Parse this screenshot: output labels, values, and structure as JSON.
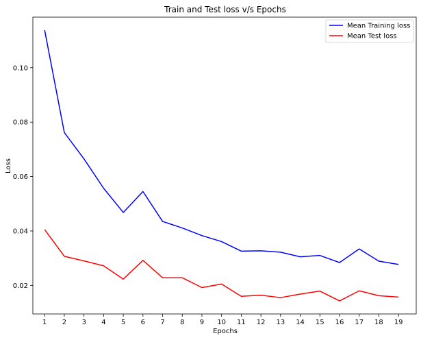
{
  "chart_data": {
    "type": "line",
    "title": "Train and Test loss v/s Epochs",
    "xlabel": "Epochs",
    "ylabel": "Loss",
    "x": [
      1,
      2,
      3,
      4,
      5,
      6,
      7,
      8,
      9,
      10,
      11,
      12,
      13,
      14,
      15,
      16,
      17,
      18,
      19
    ],
    "xlim": [
      0.4,
      19.9
    ],
    "ylim": [
      0.0095,
      0.1186
    ],
    "yticks": [
      0.02,
      0.04,
      0.06,
      0.08,
      0.1
    ],
    "ytick_labels": [
      "0.02",
      "0.04",
      "0.06",
      "0.08",
      "0.10"
    ],
    "grid": false,
    "legend_position": "top-right",
    "series": [
      {
        "name": "Mean Training loss",
        "color": "#0000ff",
        "values": [
          0.1138,
          0.0762,
          0.0665,
          0.0557,
          0.0468,
          0.0545,
          0.0435,
          0.0411,
          0.0383,
          0.0361,
          0.0326,
          0.0327,
          0.0322,
          0.0305,
          0.031,
          0.0284,
          0.0334,
          0.0289,
          0.0277
        ]
      },
      {
        "name": "Mean Test loss",
        "color": "#ff0000",
        "values": [
          0.0405,
          0.0307,
          0.029,
          0.0272,
          0.0223,
          0.0292,
          0.0228,
          0.0228,
          0.0192,
          0.0205,
          0.016,
          0.0164,
          0.0155,
          0.0168,
          0.0179,
          0.0143,
          0.018,
          0.0162,
          0.0157
        ]
      }
    ]
  }
}
